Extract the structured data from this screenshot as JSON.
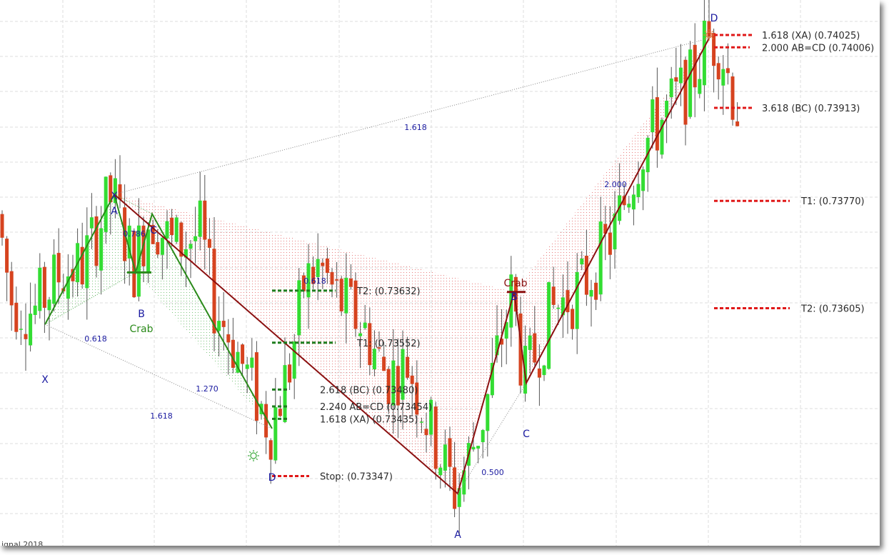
{
  "footer_text": "ignal 2018",
  "chart_data": {
    "type": "candlestick",
    "colors": {
      "up": "#33dd33",
      "down": "#d6431f",
      "bull_pattern": "#2a8a1a",
      "bear_pattern": "#8b1010",
      "bull_level": "#1e7d1e",
      "bear_level": "#e01818",
      "ratio_text": "#1a1aa0"
    },
    "y_range_approx": [
      0.7331,
      0.7405
    ],
    "bullish_crab": {
      "label": "Crab",
      "points": [
        {
          "name": "X",
          "price": 0.7358
        },
        {
          "name": "A",
          "price": 0.7378
        },
        {
          "name": "B",
          "price": 0.7366
        },
        {
          "name": "C",
          "price": 0.7375
        },
        {
          "name": "D",
          "price": 0.7342
        }
      ],
      "ratios": [
        {
          "text": "0.618",
          "leg": "XB"
        },
        {
          "text": "0.786",
          "leg": "AC"
        },
        {
          "text": "1.270",
          "leg": "BD"
        },
        {
          "text": "1.618",
          "leg": "XD"
        }
      ],
      "levels": [
        {
          "label": "T2: (0.73632)",
          "price": 0.73632
        },
        {
          "label": "T1: (0.73552)",
          "price": 0.73552
        },
        {
          "label": "2.618 (BC) (0.73480)",
          "price": 0.7348
        },
        {
          "label": "2.240 AB=CD (0.73454)",
          "price": 0.73454
        },
        {
          "label": "1.618 (XA) (0.73435)",
          "price": 0.73435
        },
        {
          "label": "Stop: (0.73347)",
          "price": 0.73347
        }
      ]
    },
    "bearish_crab": {
      "label": "Crab",
      "points": [
        {
          "name": "X",
          "price": 0.7378
        },
        {
          "name": "A",
          "price": 0.7332
        },
        {
          "name": "B",
          "price": 0.7363
        },
        {
          "name": "C",
          "price": 0.7349
        },
        {
          "name": "D",
          "price": 0.7402
        }
      ],
      "ratios": [
        {
          "text": "0.618",
          "leg": "XB"
        },
        {
          "text": "0.500",
          "leg": "AC"
        },
        {
          "text": "2.000",
          "leg": "BD"
        },
        {
          "text": "1.618",
          "leg": "XD"
        }
      ],
      "levels": [
        {
          "label": "1.618 (XA) (0.74025)",
          "price": 0.74025
        },
        {
          "label": "2.000 AB=CD (0.74006)",
          "price": 0.74006
        },
        {
          "label": "3.618 (BC) (0.73913)",
          "price": 0.73913
        },
        {
          "label": "T1: (0.73770)",
          "price": 0.7377
        },
        {
          "label": "T2: (0.73605)",
          "price": 0.73605
        }
      ]
    }
  }
}
